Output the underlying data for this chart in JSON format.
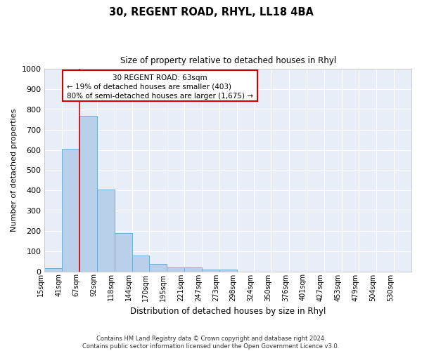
{
  "title1": "30, REGENT ROAD, RHYL, LL18 4BA",
  "title2": "Size of property relative to detached houses in Rhyl",
  "xlabel": "Distribution of detached houses by size in Rhyl",
  "ylabel": "Number of detached properties",
  "categories": [
    "15sqm",
    "41sqm",
    "67sqm",
    "92sqm",
    "118sqm",
    "144sqm",
    "170sqm",
    "195sqm",
    "221sqm",
    "247sqm",
    "273sqm",
    "298sqm",
    "324sqm",
    "350sqm",
    "376sqm",
    "401sqm",
    "427sqm",
    "453sqm",
    "479sqm",
    "504sqm",
    "530sqm"
  ],
  "values": [
    15,
    605,
    770,
    405,
    190,
    78,
    38,
    20,
    18,
    10,
    10,
    0,
    0,
    0,
    0,
    0,
    0,
    0,
    0,
    0,
    0
  ],
  "bar_color": "#b8d0ea",
  "bar_edge_color": "#6baed6",
  "vline_color": "#cc0000",
  "vline_x": 2,
  "annotation_text1": "30 REGENT ROAD: 63sqm",
  "annotation_text2": "← 19% of detached houses are smaller (403)",
  "annotation_text3": "80% of semi-detached houses are larger (1,675) →",
  "annotation_box_facecolor": "#ffffff",
  "annotation_box_edgecolor": "#cc0000",
  "footer1": "Contains HM Land Registry data © Crown copyright and database right 2024.",
  "footer2": "Contains public sector information licensed under the Open Government Licence v3.0.",
  "ylim_max": 1000,
  "yticks": [
    0,
    100,
    200,
    300,
    400,
    500,
    600,
    700,
    800,
    900,
    1000
  ],
  "bg_color": "#e8eef8",
  "grid_color": "#ffffff"
}
